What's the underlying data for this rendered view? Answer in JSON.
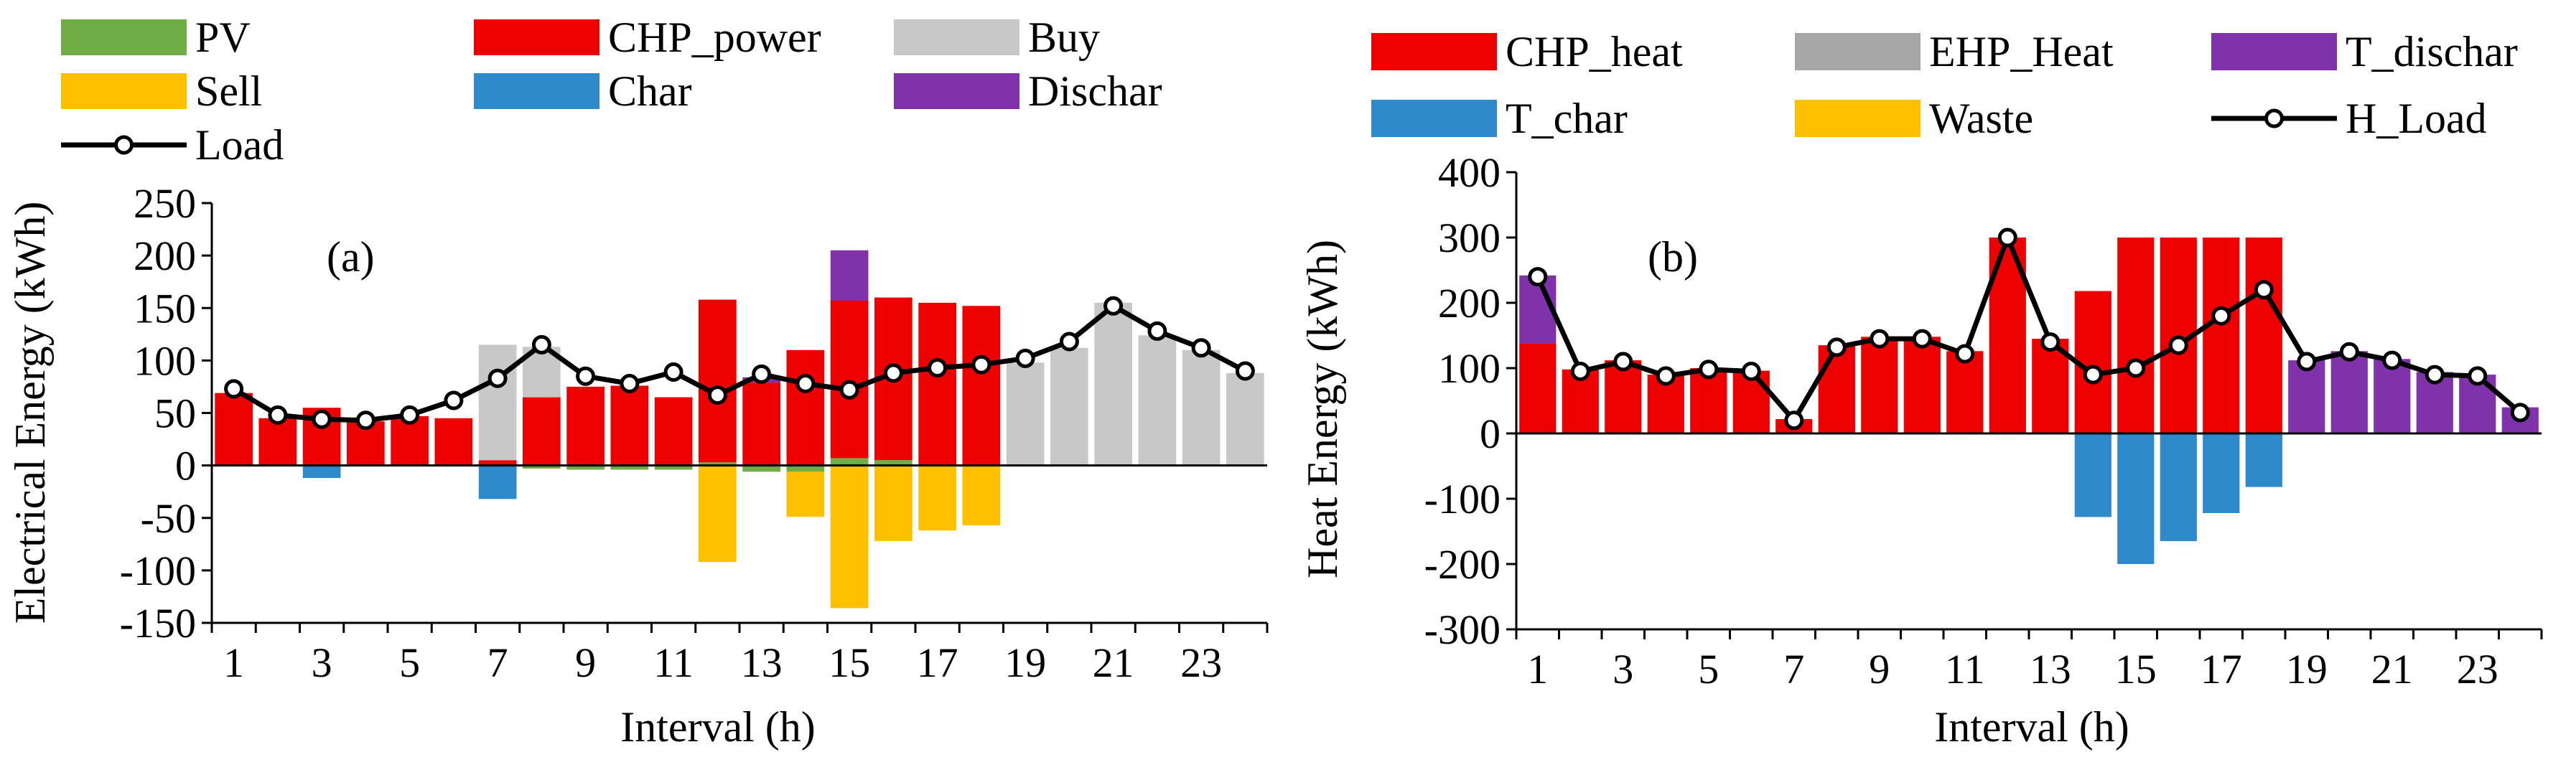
{
  "chart_data": [
    {
      "type": "bar",
      "stacked": true,
      "panel_label": "(a)",
      "xlabel": "Interval (h)",
      "ylabel": "Electrical Energy (kWh)",
      "ylim": [
        -150,
        250
      ],
      "yticks": [
        250,
        200,
        150,
        100,
        50,
        0,
        -50,
        -100,
        -150
      ],
      "xticks": [
        1,
        3,
        5,
        7,
        9,
        11,
        13,
        15,
        17,
        19,
        21,
        23
      ],
      "categories": [
        1,
        2,
        3,
        4,
        5,
        6,
        7,
        8,
        9,
        10,
        11,
        12,
        13,
        14,
        15,
        16,
        17,
        18,
        19,
        20,
        21,
        22,
        23,
        24
      ],
      "series": [
        {
          "name": "PV",
          "color": "#70AD47",
          "values": [
            0,
            0,
            0,
            0,
            0,
            0,
            0,
            -3,
            -4,
            -4,
            -4,
            3,
            -6,
            -6,
            7,
            5,
            0,
            0,
            0,
            0,
            0,
            0,
            0,
            0
          ]
        },
        {
          "name": "CHP_power",
          "color": "#EE0000",
          "values": [
            69,
            45,
            55,
            42,
            47,
            45,
            5,
            65,
            75,
            76,
            65,
            155,
            79,
            110,
            150,
            155,
            155,
            152,
            0,
            0,
            0,
            0,
            0,
            0
          ]
        },
        {
          "name": "Buy",
          "color": "#C8C8C8",
          "values": [
            0,
            0,
            0,
            0,
            0,
            0,
            110,
            48,
            0,
            0,
            0,
            0,
            0,
            0,
            0,
            0,
            0,
            0,
            98,
            112,
            155,
            124,
            110,
            88
          ]
        },
        {
          "name": "Sell",
          "color": "#FFC000",
          "values": [
            0,
            0,
            0,
            0,
            0,
            0,
            0,
            0,
            0,
            0,
            0,
            -92,
            0,
            -43,
            -136,
            -72,
            -62,
            -57,
            0,
            0,
            0,
            0,
            0,
            0
          ]
        },
        {
          "name": "Char",
          "color": "#2E8ACB",
          "values": [
            0,
            0,
            -12,
            0,
            0,
            0,
            -32,
            0,
            0,
            0,
            0,
            0,
            0,
            0,
            0,
            0,
            0,
            0,
            0,
            0,
            0,
            0,
            0,
            0
          ]
        },
        {
          "name": "Dischar",
          "color": "#7F32A9",
          "values": [
            0,
            0,
            0,
            0,
            0,
            0,
            0,
            0,
            0,
            0,
            0,
            0,
            5,
            0,
            48,
            0,
            0,
            0,
            0,
            0,
            0,
            0,
            0,
            0
          ]
        }
      ],
      "line": {
        "name": "Load",
        "color": "#000000",
        "values": [
          73,
          48,
          44,
          43,
          48,
          62,
          83,
          115,
          85,
          78,
          89,
          67,
          87,
          78,
          72,
          88,
          93,
          96,
          102,
          118,
          152,
          128,
          112,
          90
        ]
      }
    },
    {
      "type": "bar",
      "stacked": true,
      "panel_label": "(b)",
      "xlabel": "Interval (h)",
      "ylabel": "Heat Energy (kWh)",
      "ylim": [
        -300,
        400
      ],
      "yticks": [
        400,
        300,
        200,
        100,
        0,
        -100,
        -200,
        -300
      ],
      "xticks": [
        1,
        3,
        5,
        7,
        9,
        11,
        13,
        15,
        17,
        19,
        21,
        23
      ],
      "categories": [
        1,
        2,
        3,
        4,
        5,
        6,
        7,
        8,
        9,
        10,
        11,
        12,
        13,
        14,
        15,
        16,
        17,
        18,
        19,
        20,
        21,
        22,
        23,
        24
      ],
      "series": [
        {
          "name": "CHP_heat",
          "color": "#EE0000",
          "values": [
            138,
            98,
            112,
            90,
            100,
            96,
            22,
            135,
            148,
            148,
            126,
            300,
            145,
            218,
            300,
            300,
            300,
            300,
            0,
            0,
            0,
            0,
            0,
            0
          ]
        },
        {
          "name": "EHP_Heat",
          "color": "#A6A6A6",
          "values": [
            0,
            0,
            0,
            0,
            0,
            0,
            0,
            0,
            0,
            0,
            0,
            0,
            0,
            0,
            0,
            0,
            0,
            0,
            0,
            0,
            0,
            0,
            0,
            0
          ]
        },
        {
          "name": "T_dischar",
          "color": "#7F32A9",
          "values": [
            104,
            0,
            0,
            0,
            0,
            0,
            0,
            0,
            0,
            0,
            0,
            0,
            0,
            0,
            0,
            0,
            0,
            0,
            112,
            126,
            114,
            94,
            90,
            40
          ]
        },
        {
          "name": "T_char",
          "color": "#2E8ACB",
          "values": [
            0,
            0,
            0,
            0,
            0,
            0,
            0,
            0,
            0,
            0,
            0,
            0,
            0,
            -128,
            -200,
            -165,
            -122,
            -82,
            0,
            0,
            0,
            0,
            0,
            0
          ]
        },
        {
          "name": "Waste",
          "color": "#FFC000",
          "values": [
            0,
            0,
            0,
            0,
            0,
            0,
            0,
            0,
            0,
            0,
            0,
            0,
            0,
            0,
            0,
            0,
            0,
            0,
            0,
            0,
            0,
            0,
            0,
            0
          ]
        }
      ],
      "line": {
        "name": "H_Load",
        "color": "#000000",
        "values": [
          240,
          95,
          110,
          88,
          98,
          95,
          20,
          132,
          145,
          145,
          122,
          300,
          140,
          90,
          100,
          135,
          180,
          220,
          110,
          125,
          112,
          90,
          88,
          32
        ]
      }
    }
  ]
}
